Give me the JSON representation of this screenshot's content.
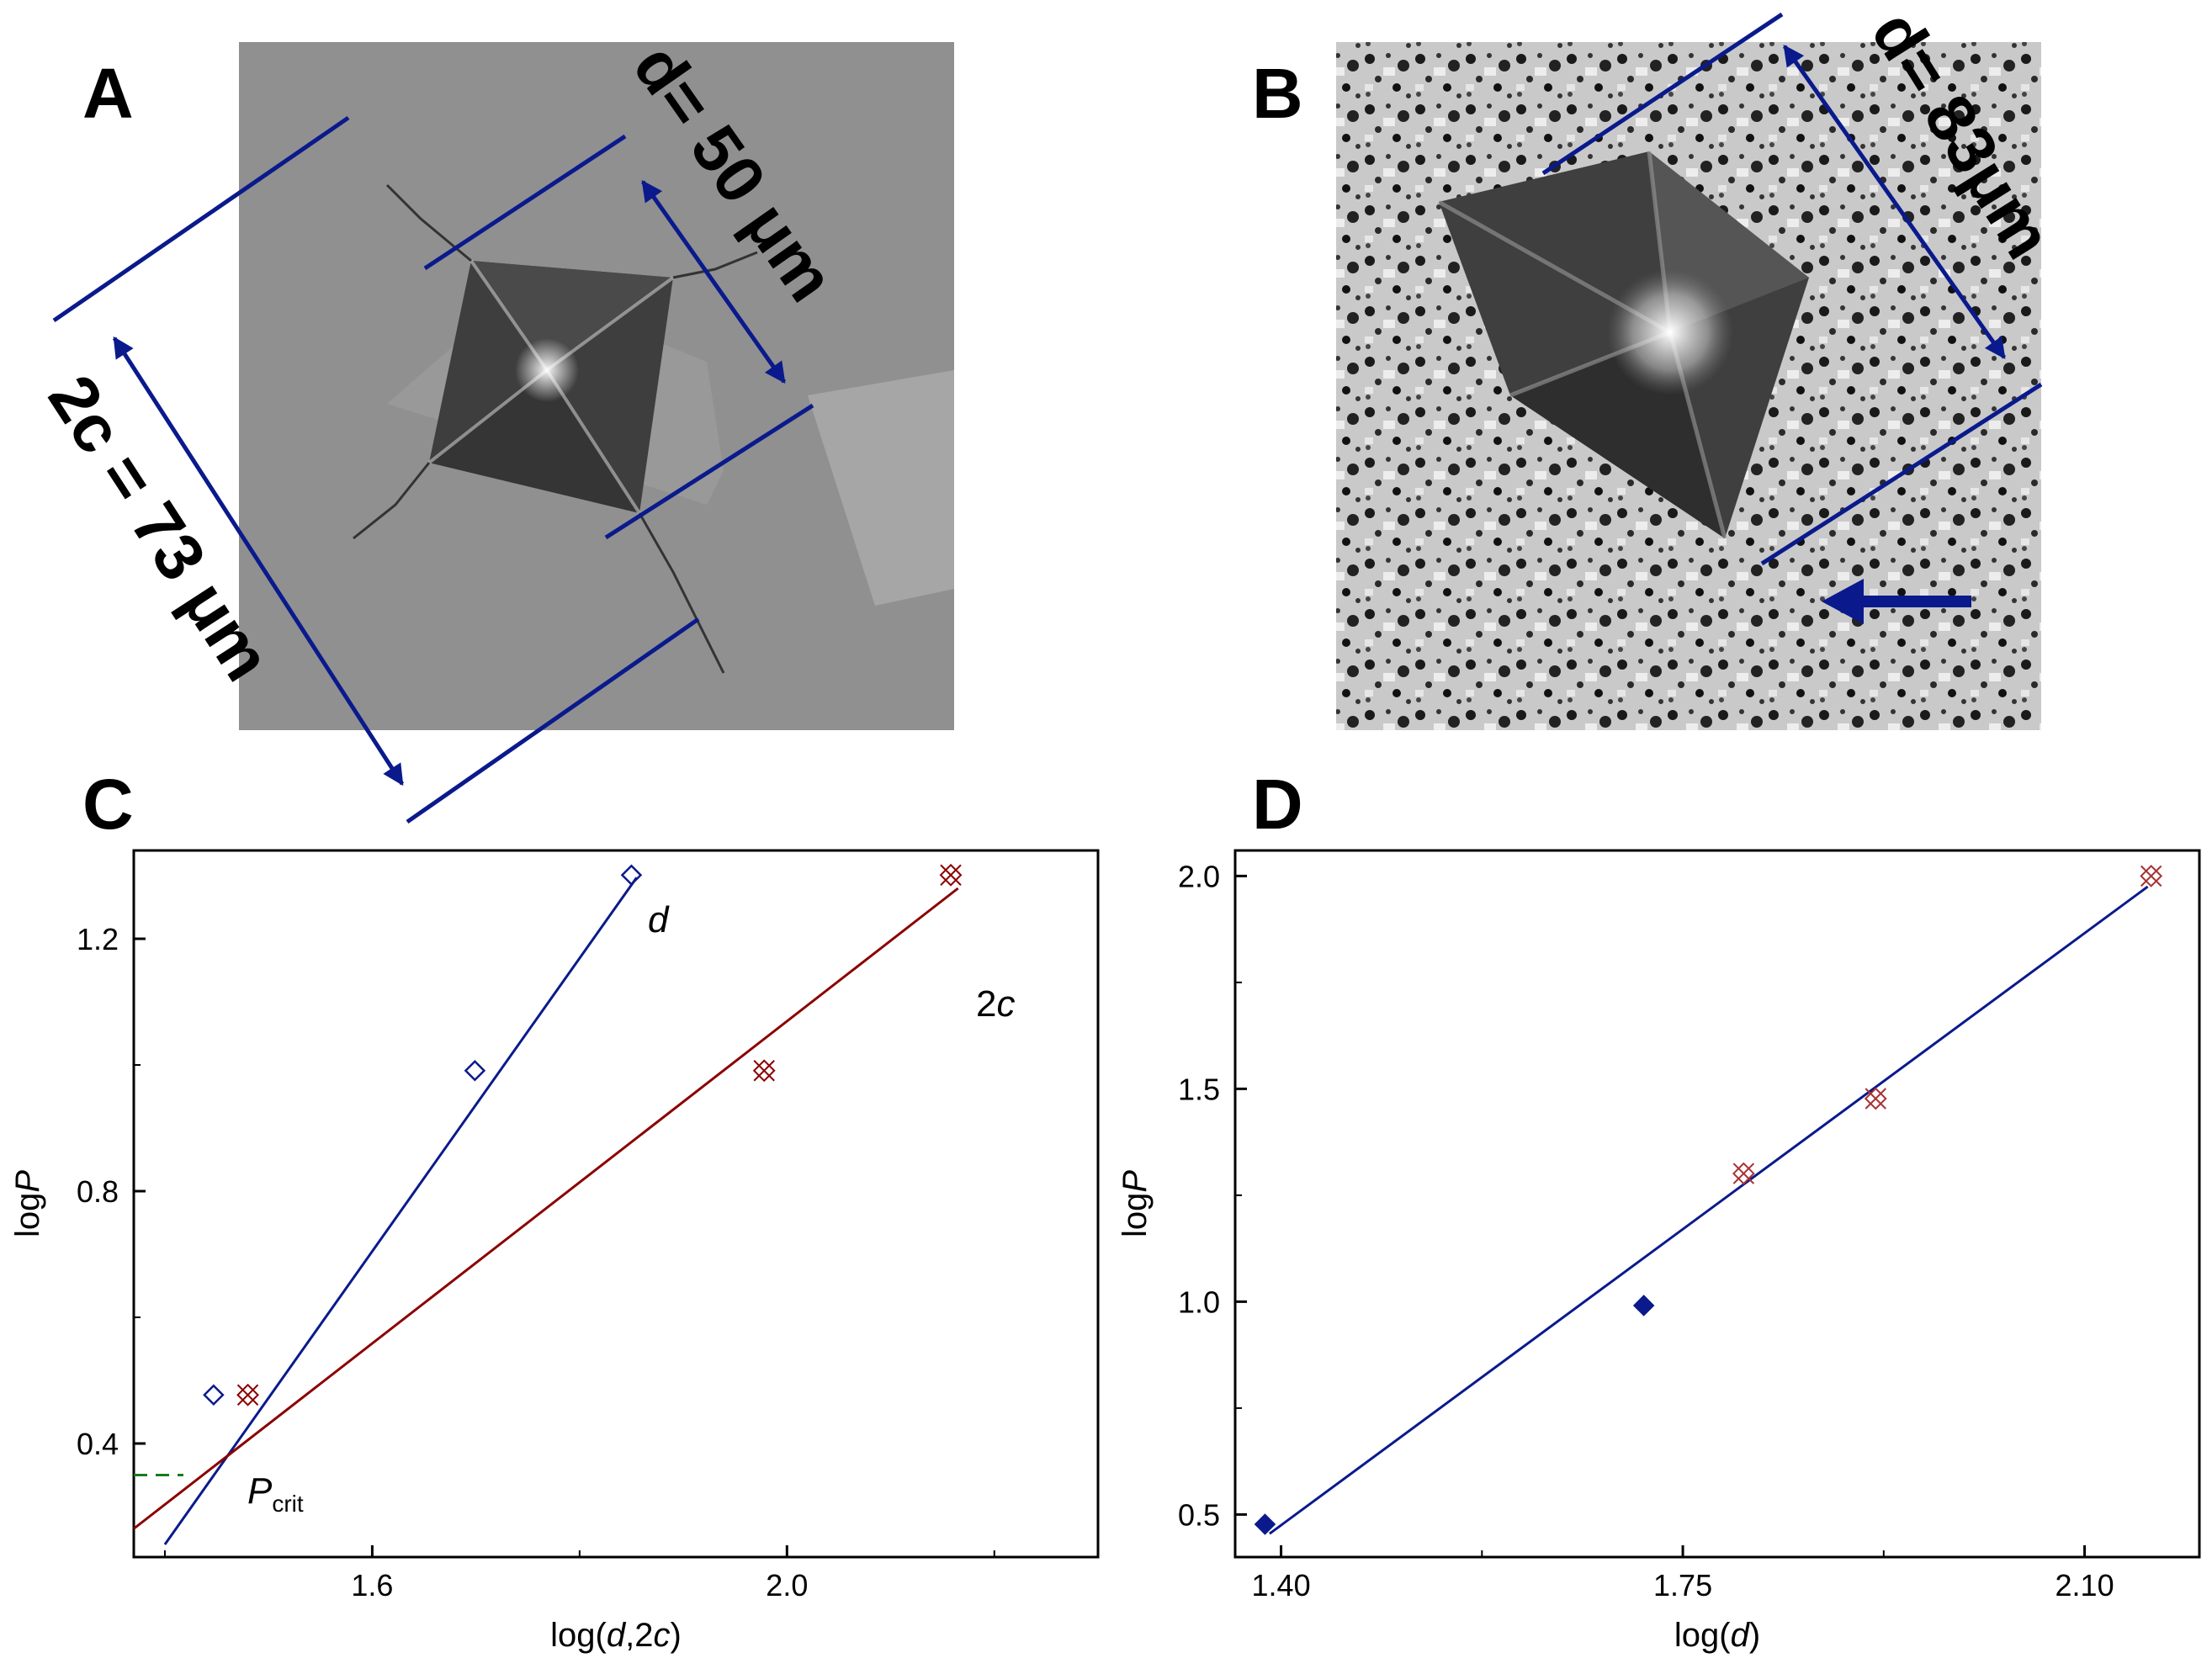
{
  "panels": {
    "A": {
      "letter": "A",
      "diag_label": "d= 50 μm",
      "crack_label": "2c = 73 μm"
    },
    "B": {
      "letter": "B",
      "diag_label": "d= 83μm"
    },
    "C": {
      "letter": "C"
    },
    "D": {
      "letter": "D"
    }
  },
  "colors": {
    "blue": "#0a1a8c",
    "red": "#8b0000",
    "green": "#1a7a1a",
    "marker_red": "#a83232"
  },
  "chart_data": [
    {
      "panel": "C",
      "type": "scatter",
      "xlabel": "log(d,2c)",
      "ylabel": "logP",
      "xlim": [
        1.37,
        2.3
      ],
      "ylim": [
        0.22,
        1.34
      ],
      "x_ticks": [
        1.6,
        2.0
      ],
      "x_tick_labels": [
        "1.6",
        "2.0"
      ],
      "y_ticks": [
        0.4,
        0.8,
        1.2
      ],
      "y_tick_labels": [
        "0.4",
        "0.8",
        "1.2"
      ],
      "series": [
        {
          "name": "d",
          "marker": "diamond-open",
          "color": "#0a1a8c",
          "points": [
            [
              1.447,
              0.477
            ],
            [
              1.699,
              0.991
            ],
            [
              1.85,
              1.301
            ]
          ],
          "fit": [
            [
              1.4,
              0.24
            ],
            [
              1.855,
              1.297
            ]
          ]
        },
        {
          "name": "2c",
          "marker": "x-square",
          "color": "#8b0000",
          "points": [
            [
              1.48,
              0.477
            ],
            [
              1.978,
              0.991
            ],
            [
              2.158,
              1.301
            ]
          ],
          "fit": [
            [
              1.37,
              0.265
            ],
            [
              2.165,
              1.28
            ]
          ]
        }
      ],
      "critical_point": {
        "label": "P",
        "subscript": "crit",
        "x": 1.43,
        "y": 0.35
      }
    },
    {
      "panel": "D",
      "type": "scatter",
      "xlabel": "log(d)",
      "ylabel": "logP",
      "xlim": [
        1.36,
        2.2
      ],
      "ylim": [
        0.4,
        2.06
      ],
      "x_ticks": [
        1.4,
        1.75,
        2.1
      ],
      "x_tick_labels": [
        "1.40",
        "1.75",
        "2.10"
      ],
      "y_ticks": [
        0.5,
        1.0,
        1.5,
        2.0
      ],
      "y_tick_labels": [
        "0.5",
        "1.0",
        "1.5",
        "2.0"
      ],
      "series": [
        {
          "name": "",
          "marker": "diamond-filled",
          "color": "#0a1a8c",
          "points": [
            [
              1.386,
              0.477
            ],
            [
              1.716,
              0.991
            ]
          ]
        },
        {
          "name": "",
          "marker": "x-square",
          "color": "#a83232",
          "points": [
            [
              1.803,
              1.301
            ],
            [
              1.918,
              1.477
            ],
            [
              2.158,
              2.0
            ]
          ]
        }
      ],
      "fit": [
        [
          1.39,
          0.455
        ],
        [
          2.155,
          1.975
        ]
      ]
    }
  ]
}
